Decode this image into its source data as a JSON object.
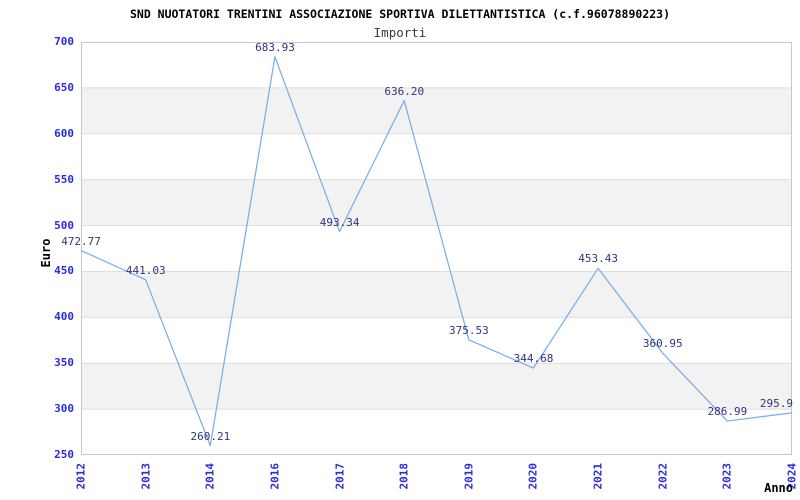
{
  "chart_data": {
    "type": "line",
    "title": "SND NUOTATORI TRENTINI ASSOCIAZIONE SPORTIVA DILETTANTISTICA (c.f.96078890223)",
    "subtitle": "Importi",
    "xlabel": "Anno",
    "ylabel": "Euro",
    "categories": [
      "2012",
      "2013",
      "2014",
      "2016",
      "2017",
      "2018",
      "2019",
      "2020",
      "2021",
      "2022",
      "2023",
      "2024"
    ],
    "values": [
      472.77,
      441.03,
      260.21,
      683.93,
      493.34,
      636.2,
      375.53,
      344.68,
      453.43,
      360.95,
      286.99,
      295.9
    ],
    "point_labels": [
      "472.77",
      "441.03",
      "260.21",
      "683.93",
      "493.34",
      "636.20",
      "375.53",
      "344.68",
      "453.43",
      "360.95",
      "286.99",
      "295.9"
    ],
    "ylim": [
      250,
      700
    ],
    "ytick_step": 50,
    "y_ticks": [
      "700",
      "650",
      "600",
      "550",
      "500",
      "450",
      "400",
      "350",
      "300",
      "250"
    ],
    "grid": "horizontal-bands",
    "legend": "none",
    "colors": {
      "line": "#74ade8",
      "tick_label": "#2b2bdf",
      "data_label": "#333380",
      "band": "#f2f2f2",
      "gridline": "#dedede",
      "border": "#c8c8c8",
      "title": "#000000",
      "subtitle": "#3a3a3a",
      "background": "#ffffff"
    }
  }
}
